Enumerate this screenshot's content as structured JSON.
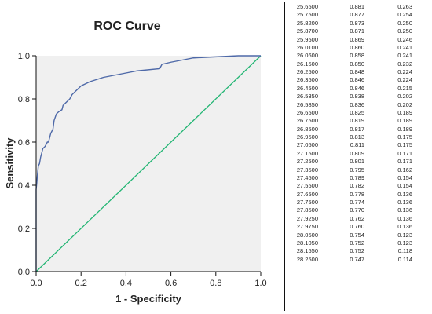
{
  "colors": {
    "plot_background": "#f0f0f0",
    "roc_line": "#4e69a8",
    "reference_line": "#22b573",
    "axis": "#111111"
  },
  "chart_data": {
    "type": "line",
    "title": "ROC Curve",
    "xlabel": "1 - Specificity",
    "ylabel": "Sensitivity",
    "xlim": [
      0.0,
      1.0
    ],
    "ylim": [
      0.0,
      1.0
    ],
    "x_ticks": [
      "0.0",
      "0.2",
      "0.4",
      "0.6",
      "0.8",
      "1.0"
    ],
    "y_ticks": [
      "0.0",
      "0.2",
      "0.4",
      "0.6",
      "0.8",
      "1.0"
    ],
    "grid": false,
    "series": [
      {
        "role": "roc",
        "color": "#4e69a8",
        "x": [
          0,
          0,
          0.003,
          0.005,
          0.008,
          0.01,
          0.015,
          0.02,
          0.025,
          0.03,
          0.04,
          0.05,
          0.055,
          0.06,
          0.065,
          0.075,
          0.08,
          0.09,
          0.1,
          0.115,
          0.12,
          0.14,
          0.15,
          0.16,
          0.18,
          0.2,
          0.22,
          0.24,
          0.27,
          0.3,
          0.35,
          0.4,
          0.45,
          0.55,
          0.56,
          0.6,
          0.65,
          0.7,
          0.8,
          0.9,
          1.0
        ],
        "y": [
          0,
          0.38,
          0.41,
          0.44,
          0.47,
          0.49,
          0.5,
          0.53,
          0.55,
          0.57,
          0.58,
          0.6,
          0.6,
          0.62,
          0.64,
          0.66,
          0.7,
          0.73,
          0.74,
          0.75,
          0.77,
          0.79,
          0.8,
          0.82,
          0.84,
          0.86,
          0.87,
          0.88,
          0.89,
          0.9,
          0.91,
          0.92,
          0.93,
          0.94,
          0.96,
          0.97,
          0.98,
          0.99,
          0.995,
          1.0,
          1.0
        ]
      },
      {
        "role": "reference",
        "color": "#22b573",
        "x": [
          0,
          1
        ],
        "y": [
          0,
          1
        ]
      }
    ]
  },
  "table": {
    "rows": [
      [
        "25.6500",
        "0.881",
        "0.263"
      ],
      [
        "25.7500",
        "0.877",
        "0.254"
      ],
      [
        "25.8200",
        "0.873",
        "0.250"
      ],
      [
        "25.8700",
        "0.871",
        "0.250"
      ],
      [
        "25.9500",
        "0.869",
        "0.246"
      ],
      [
        "26.0100",
        "0.860",
        "0.241"
      ],
      [
        "26.0600",
        "0.858",
        "0.241"
      ],
      [
        "26.1500",
        "0.850",
        "0.232"
      ],
      [
        "26.2500",
        "0.848",
        "0.224"
      ],
      [
        "26.3500",
        "0.846",
        "0.224"
      ],
      [
        "26.4500",
        "0.846",
        "0.215"
      ],
      [
        "26.5350",
        "0.838",
        "0.202"
      ],
      [
        "26.5850",
        "0.836",
        "0.202"
      ],
      [
        "26.6500",
        "0.825",
        "0.189"
      ],
      [
        "26.7500",
        "0.819",
        "0.189"
      ],
      [
        "26.8500",
        "0.817",
        "0.189"
      ],
      [
        "26.9500",
        "0.813",
        "0.175"
      ],
      [
        "27.0500",
        "0.811",
        "0.175"
      ],
      [
        "27.1500",
        "0.809",
        "0.171"
      ],
      [
        "27.2500",
        "0.801",
        "0.171"
      ],
      [
        "27.3500",
        "0.795",
        "0.162"
      ],
      [
        "27.4500",
        "0.789",
        "0.154"
      ],
      [
        "27.5500",
        "0.782",
        "0.154"
      ],
      [
        "27.6500",
        "0.778",
        "0.136"
      ],
      [
        "27.7500",
        "0.774",
        "0.136"
      ],
      [
        "27.8500",
        "0.770",
        "0.136"
      ],
      [
        "27.9250",
        "0.762",
        "0.136"
      ],
      [
        "27.9750",
        "0.760",
        "0.136"
      ],
      [
        "28.0500",
        "0.754",
        "0.123"
      ],
      [
        "28.1050",
        "0.752",
        "0.123"
      ],
      [
        "28.1550",
        "0.752",
        "0.118"
      ],
      [
        "28.2500",
        "0.747",
        "0.114"
      ]
    ]
  }
}
